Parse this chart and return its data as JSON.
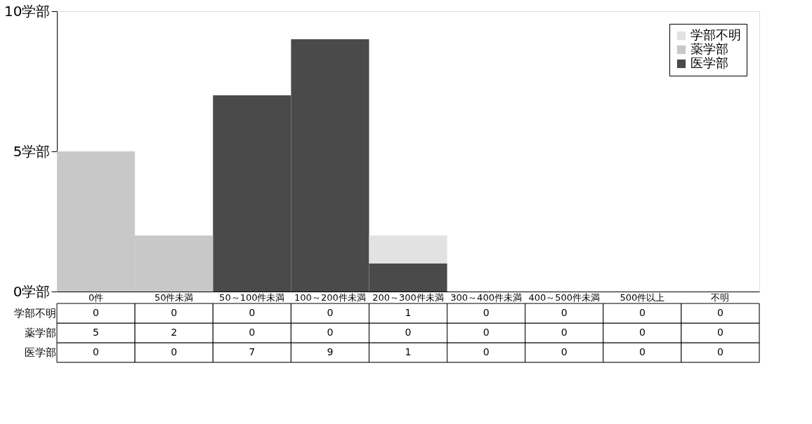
{
  "chart_data": {
    "type": "bar",
    "stacked": true,
    "categories": [
      "0件",
      "50件未満",
      "50～100件未満",
      "100～200件未満",
      "200～300件未満",
      "300～400件未満",
      "400～500件未満",
      "500件以上",
      "不明"
    ],
    "series": [
      {
        "name": "医学部",
        "color": "#4a4a4a",
        "values": [
          0,
          0,
          7,
          9,
          1,
          0,
          0,
          0,
          0
        ]
      },
      {
        "name": "薬学部",
        "color": "#c8c8c8",
        "values": [
          5,
          2,
          0,
          0,
          0,
          0,
          0,
          0,
          0
        ]
      },
      {
        "name": "学部不明",
        "color": "#e2e2e2",
        "values": [
          0,
          0,
          0,
          0,
          1,
          0,
          0,
          0,
          0
        ]
      }
    ],
    "ylim": [
      0,
      10
    ],
    "yticks": [
      {
        "value": 0,
        "label": "0学部"
      },
      {
        "value": 5,
        "label": "5学部"
      },
      {
        "value": 10,
        "label": "10学部"
      }
    ],
    "grid": false,
    "legend": "top right",
    "data_labels": true
  }
}
